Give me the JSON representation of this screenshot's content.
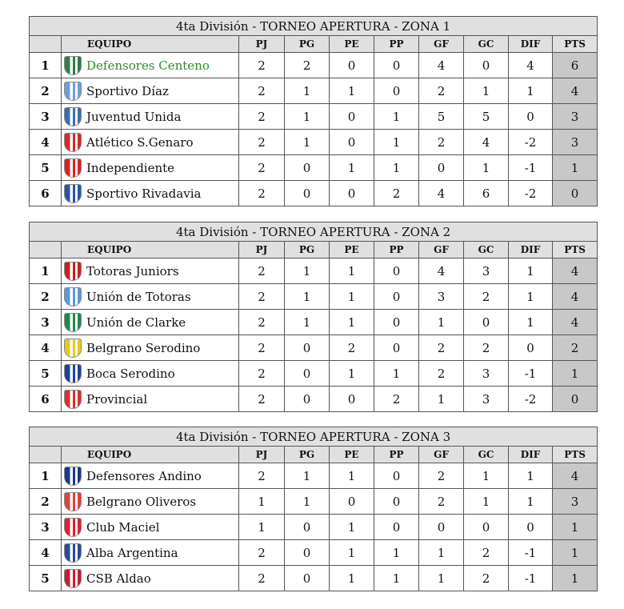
{
  "columns": [
    "",
    "EQUIPO",
    "PJ",
    "PG",
    "PE",
    "PP",
    "GF",
    "GC",
    "DIF",
    "PTS"
  ],
  "colors": {
    "header_bg": "#e0e0e0",
    "pts_bg": "#c8c8c8",
    "leader_text": "#2e8b2e"
  },
  "zones": [
    {
      "title": "4ta División - TORNEO APERTURA - ZONA 1",
      "rows": [
        {
          "pos": "1",
          "team": "Defensores Centeno",
          "crest": "#2f7d4a",
          "highlight": true,
          "stats": [
            "2",
            "2",
            "0",
            "0",
            "4",
            "0",
            "4",
            "6"
          ]
        },
        {
          "pos": "2",
          "team": "Sportivo Díaz",
          "crest": "#6aa0d8",
          "stats": [
            "2",
            "1",
            "1",
            "0",
            "2",
            "1",
            "1",
            "4"
          ]
        },
        {
          "pos": "3",
          "team": "Juventud Unida",
          "crest": "#3a6fb0",
          "stats": [
            "2",
            "1",
            "0",
            "1",
            "5",
            "5",
            "0",
            "3"
          ]
        },
        {
          "pos": "4",
          "team": "Atlético S.Genaro",
          "crest": "#d22a2a",
          "stats": [
            "2",
            "1",
            "0",
            "1",
            "2",
            "4",
            "-2",
            "3"
          ]
        },
        {
          "pos": "5",
          "team": "Independiente",
          "crest": "#e02020",
          "stats": [
            "2",
            "0",
            "1",
            "1",
            "0",
            "1",
            "-1",
            "1"
          ]
        },
        {
          "pos": "6",
          "team": "Sportivo Rivadavia",
          "crest": "#2a55a8",
          "stats": [
            "2",
            "0",
            "0",
            "2",
            "4",
            "6",
            "-2",
            "0"
          ]
        }
      ]
    },
    {
      "title": "4ta División - TORNEO APERTURA - ZONA 2",
      "rows": [
        {
          "pos": "1",
          "team": "Totoras Juniors",
          "crest": "#c82020",
          "stats": [
            "2",
            "1",
            "1",
            "0",
            "4",
            "3",
            "1",
            "4"
          ]
        },
        {
          "pos": "2",
          "team": "Unión de Totoras",
          "crest": "#5a9ad8",
          "stats": [
            "2",
            "1",
            "1",
            "0",
            "3",
            "2",
            "1",
            "4"
          ]
        },
        {
          "pos": "3",
          "team": "Unión de Clarke",
          "crest": "#1e8a4a",
          "stats": [
            "2",
            "1",
            "1",
            "0",
            "1",
            "0",
            "1",
            "4"
          ]
        },
        {
          "pos": "4",
          "team": "Belgrano Serodino",
          "crest": "#e8c820",
          "stats": [
            "2",
            "0",
            "2",
            "0",
            "2",
            "2",
            "0",
            "2"
          ]
        },
        {
          "pos": "5",
          "team": "Boca Serodino",
          "crest": "#2040a0",
          "stats": [
            "2",
            "0",
            "1",
            "1",
            "2",
            "3",
            "-1",
            "1"
          ]
        },
        {
          "pos": "6",
          "team": "Provincial",
          "crest": "#d83030",
          "stats": [
            "2",
            "0",
            "0",
            "2",
            "1",
            "3",
            "-2",
            "0"
          ]
        }
      ]
    },
    {
      "title": "4ta División - TORNEO APERTURA - ZONA 3",
      "rows": [
        {
          "pos": "1",
          "team": "Defensores Andino",
          "crest": "#1a3a8a",
          "stats": [
            "2",
            "1",
            "1",
            "0",
            "2",
            "1",
            "1",
            "4"
          ]
        },
        {
          "pos": "2",
          "team": "Belgrano Oliveros",
          "crest": "#e04040",
          "stats": [
            "1",
            "1",
            "0",
            "0",
            "2",
            "1",
            "1",
            "3"
          ]
        },
        {
          "pos": "3",
          "team": "Club Maciel",
          "crest": "#e02030",
          "stats": [
            "1",
            "0",
            "1",
            "0",
            "0",
            "0",
            "0",
            "1"
          ]
        },
        {
          "pos": "4",
          "team": "Alba Argentina",
          "crest": "#2a4a9a",
          "stats": [
            "2",
            "0",
            "1",
            "1",
            "1",
            "2",
            "-1",
            "1"
          ]
        },
        {
          "pos": "5",
          "team": "CSB Aldao",
          "crest": "#c02030",
          "stats": [
            "2",
            "0",
            "1",
            "1",
            "1",
            "2",
            "-1",
            "1"
          ]
        }
      ]
    }
  ]
}
